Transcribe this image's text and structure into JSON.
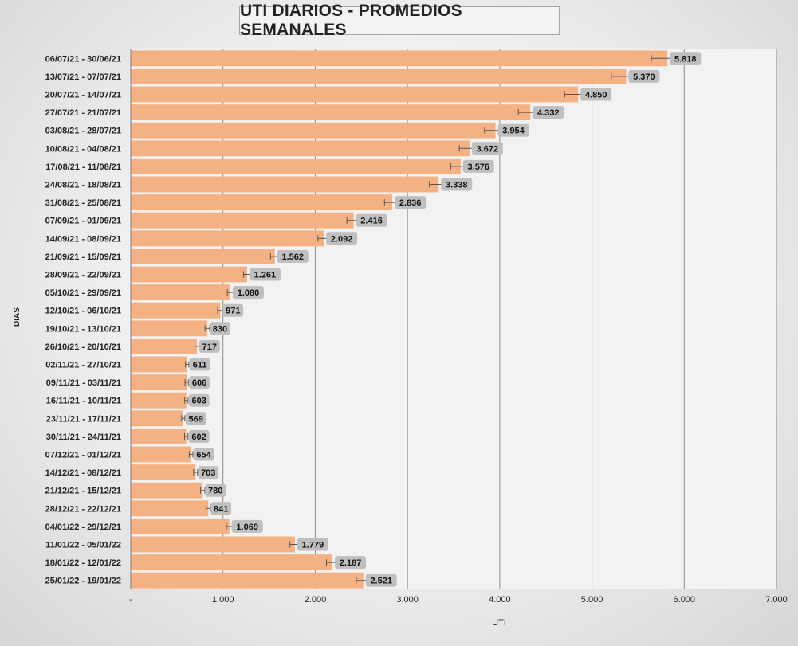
{
  "chart_data": {
    "type": "bar",
    "orientation": "horizontal",
    "title": "UTI DIARIOS - PROMEDIOS SEMANALES",
    "xlabel": "UTI",
    "ylabel": "DIAS",
    "xlim": [
      0,
      7000
    ],
    "x_ticks": [
      0,
      1000,
      2000,
      3000,
      4000,
      5000,
      6000,
      7000
    ],
    "x_tick_labels": [
      "-",
      "1.000",
      "2.000",
      "3.000",
      "4.000",
      "5.000",
      "6.000",
      "7.000"
    ],
    "grid": "vertical major gridlines",
    "bar_color": "#f4b183",
    "plot_background": "#f2f2f2",
    "data_label_background": "#bfbfbf",
    "error_bars": true,
    "categories": [
      "06/07/21 - 30/06/21",
      "13/07/21 - 07/07/21",
      "20/07/21 - 14/07/21",
      "27/07/21 - 21/07/21",
      "03/08/21 - 28/07/21",
      "10/08/21 - 04/08/21",
      "17/08/21 - 11/08/21",
      "24/08/21 - 18/08/21",
      "31/08/21 - 25/08/21",
      "07/09/21 - 01/09/21",
      "14/09/21 - 08/09/21",
      "21/09/21 - 15/09/21",
      "28/09/21 - 22/09/21",
      "05/10/21 - 29/09/21",
      "12/10/21 - 06/10/21",
      "19/10/21 - 13/10/21",
      "26/10/21 - 20/10/21",
      "02/11/21 - 27/10/21",
      "09/11/21 - 03/11/21",
      "16/11/21 - 10/11/21",
      "23/11/21 - 17/11/21",
      "30/11/21 - 24/11/21",
      "07/12/21 - 01/12/21",
      "14/12/21 - 08/12/21",
      "21/12/21 - 15/12/21",
      "28/12/21 - 22/12/21",
      "04/01/22 - 29/12/21",
      "11/01/22 - 05/01/22",
      "18/01/22 - 12/01/22",
      "25/01/22 - 19/01/22"
    ],
    "values": [
      5818,
      5370,
      4850,
      4332,
      3954,
      3672,
      3576,
      3338,
      2836,
      2416,
      2092,
      1562,
      1261,
      1080,
      971,
      830,
      717,
      611,
      606,
      603,
      569,
      602,
      654,
      703,
      780,
      841,
      1069,
      1779,
      2187,
      2521
    ],
    "value_labels": [
      "5.818",
      "5.370",
      "4.850",
      "4.332",
      "3.954",
      "3.672",
      "3.576",
      "3.338",
      "2.836",
      "2.416",
      "2.092",
      "1.562",
      "1.261",
      "1.080",
      "971",
      "830",
      "717",
      "611",
      "606",
      "603",
      "569",
      "602",
      "654",
      "703",
      "780",
      "841",
      "1.069",
      "1.779",
      "2.187",
      "2.521"
    ]
  }
}
